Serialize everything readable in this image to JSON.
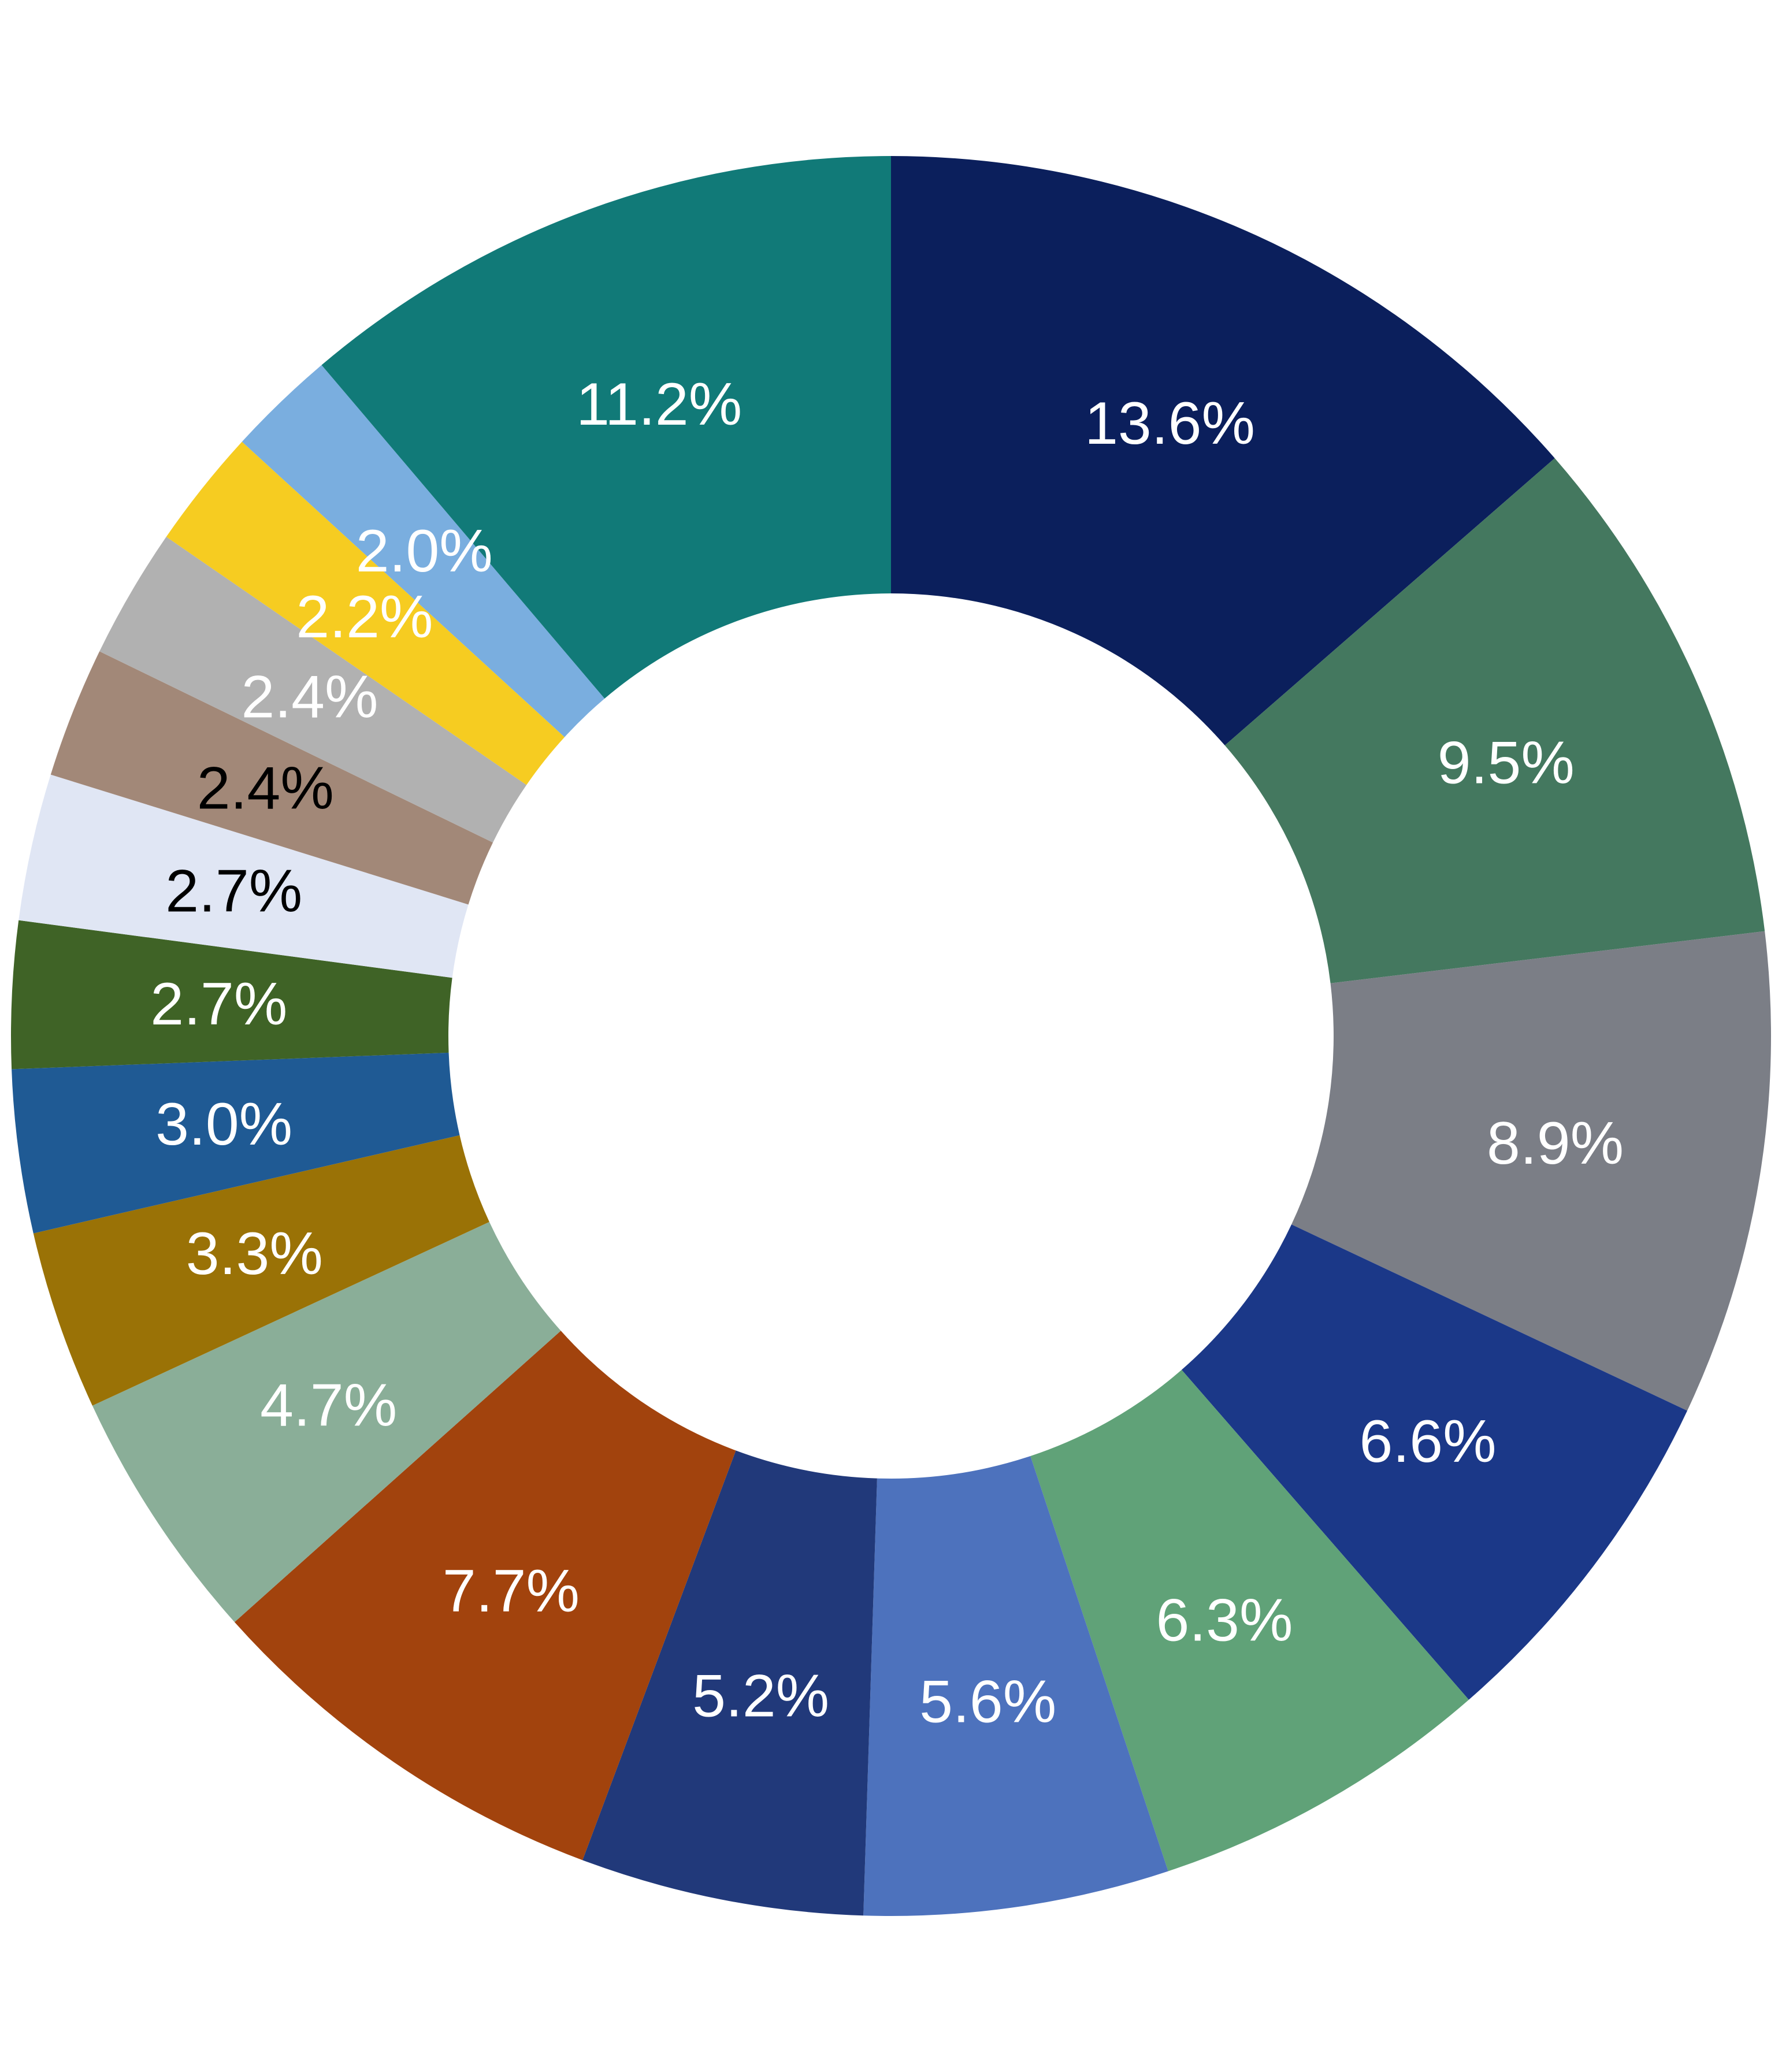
{
  "chart_data": {
    "type": "pie",
    "variant": "donut",
    "slices": [
      {
        "label": "13.6%",
        "value": 13.6,
        "color": "#0b1f5c",
        "label_color": "#ffffff"
      },
      {
        "label": "9.5%",
        "value": 9.5,
        "color": "#44785f",
        "label_color": "#ffffff"
      },
      {
        "label": "8.9%",
        "value": 8.9,
        "color": "#7b7e86",
        "label_color": "#ffffff"
      },
      {
        "label": "6.6%",
        "value": 6.6,
        "color": "#1b3888",
        "label_color": "#ffffff"
      },
      {
        "label": "6.3%",
        "value": 6.3,
        "color": "#60a278",
        "label_color": "#ffffff"
      },
      {
        "label": "5.6%",
        "value": 5.6,
        "color": "#4d72bd",
        "label_color": "#ffffff"
      },
      {
        "label": "5.2%",
        "value": 5.2,
        "color": "#21397a",
        "label_color": "#ffffff"
      },
      {
        "label": "7.7%",
        "value": 7.7,
        "color": "#a2430d",
        "label_color": "#ffffff"
      },
      {
        "label": "4.7%",
        "value": 4.7,
        "color": "#8aae98",
        "label_color": "#ffffff"
      },
      {
        "label": "3.3%",
        "value": 3.3,
        "color": "#9a7206",
        "label_color": "#ffffff"
      },
      {
        "label": "3.0%",
        "value": 3.0,
        "color": "#1f5a94",
        "label_color": "#ffffff"
      },
      {
        "label": "2.7%",
        "value": 2.7,
        "color": "#3f6326",
        "label_color": "#ffffff"
      },
      {
        "label": "2.7%",
        "value": 2.7,
        "color": "#e0e6f4",
        "label_color": "#000000"
      },
      {
        "label": "2.4%",
        "value": 2.4,
        "color": "#a28878",
        "label_color": "#000000"
      },
      {
        "label": "2.4%",
        "value": 2.4,
        "color": "#b1b1b1",
        "label_color": "#ffffff"
      },
      {
        "label": "2.2%",
        "value": 2.2,
        "color": "#f6cc21",
        "label_color": "#ffffff"
      },
      {
        "label": "2.0%",
        "value": 2.0,
        "color": "#7aaedf",
        "label_color": "#ffffff"
      },
      {
        "label": "11.2%",
        "value": 11.2,
        "color": "#117a78",
        "label_color": "#ffffff"
      }
    ],
    "start_angle_deg": 0,
    "direction": "clockwise",
    "legend": "none"
  }
}
